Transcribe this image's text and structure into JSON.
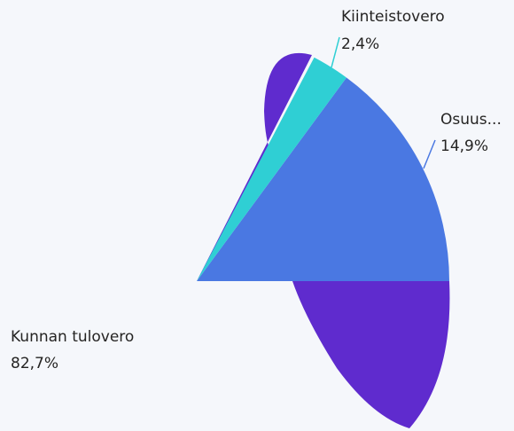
{
  "chart_data": {
    "type": "pie",
    "categories": [
      "Kunnan tulovero",
      "Osuus...",
      "Kiinteistovero"
    ],
    "values": [
      82.7,
      14.9,
      2.4
    ],
    "value_labels": [
      "82,7%",
      "14,9%",
      "2,4%"
    ],
    "colors": [
      "#5f2bce",
      "#4a78e2",
      "#2fcfd4"
    ]
  }
}
